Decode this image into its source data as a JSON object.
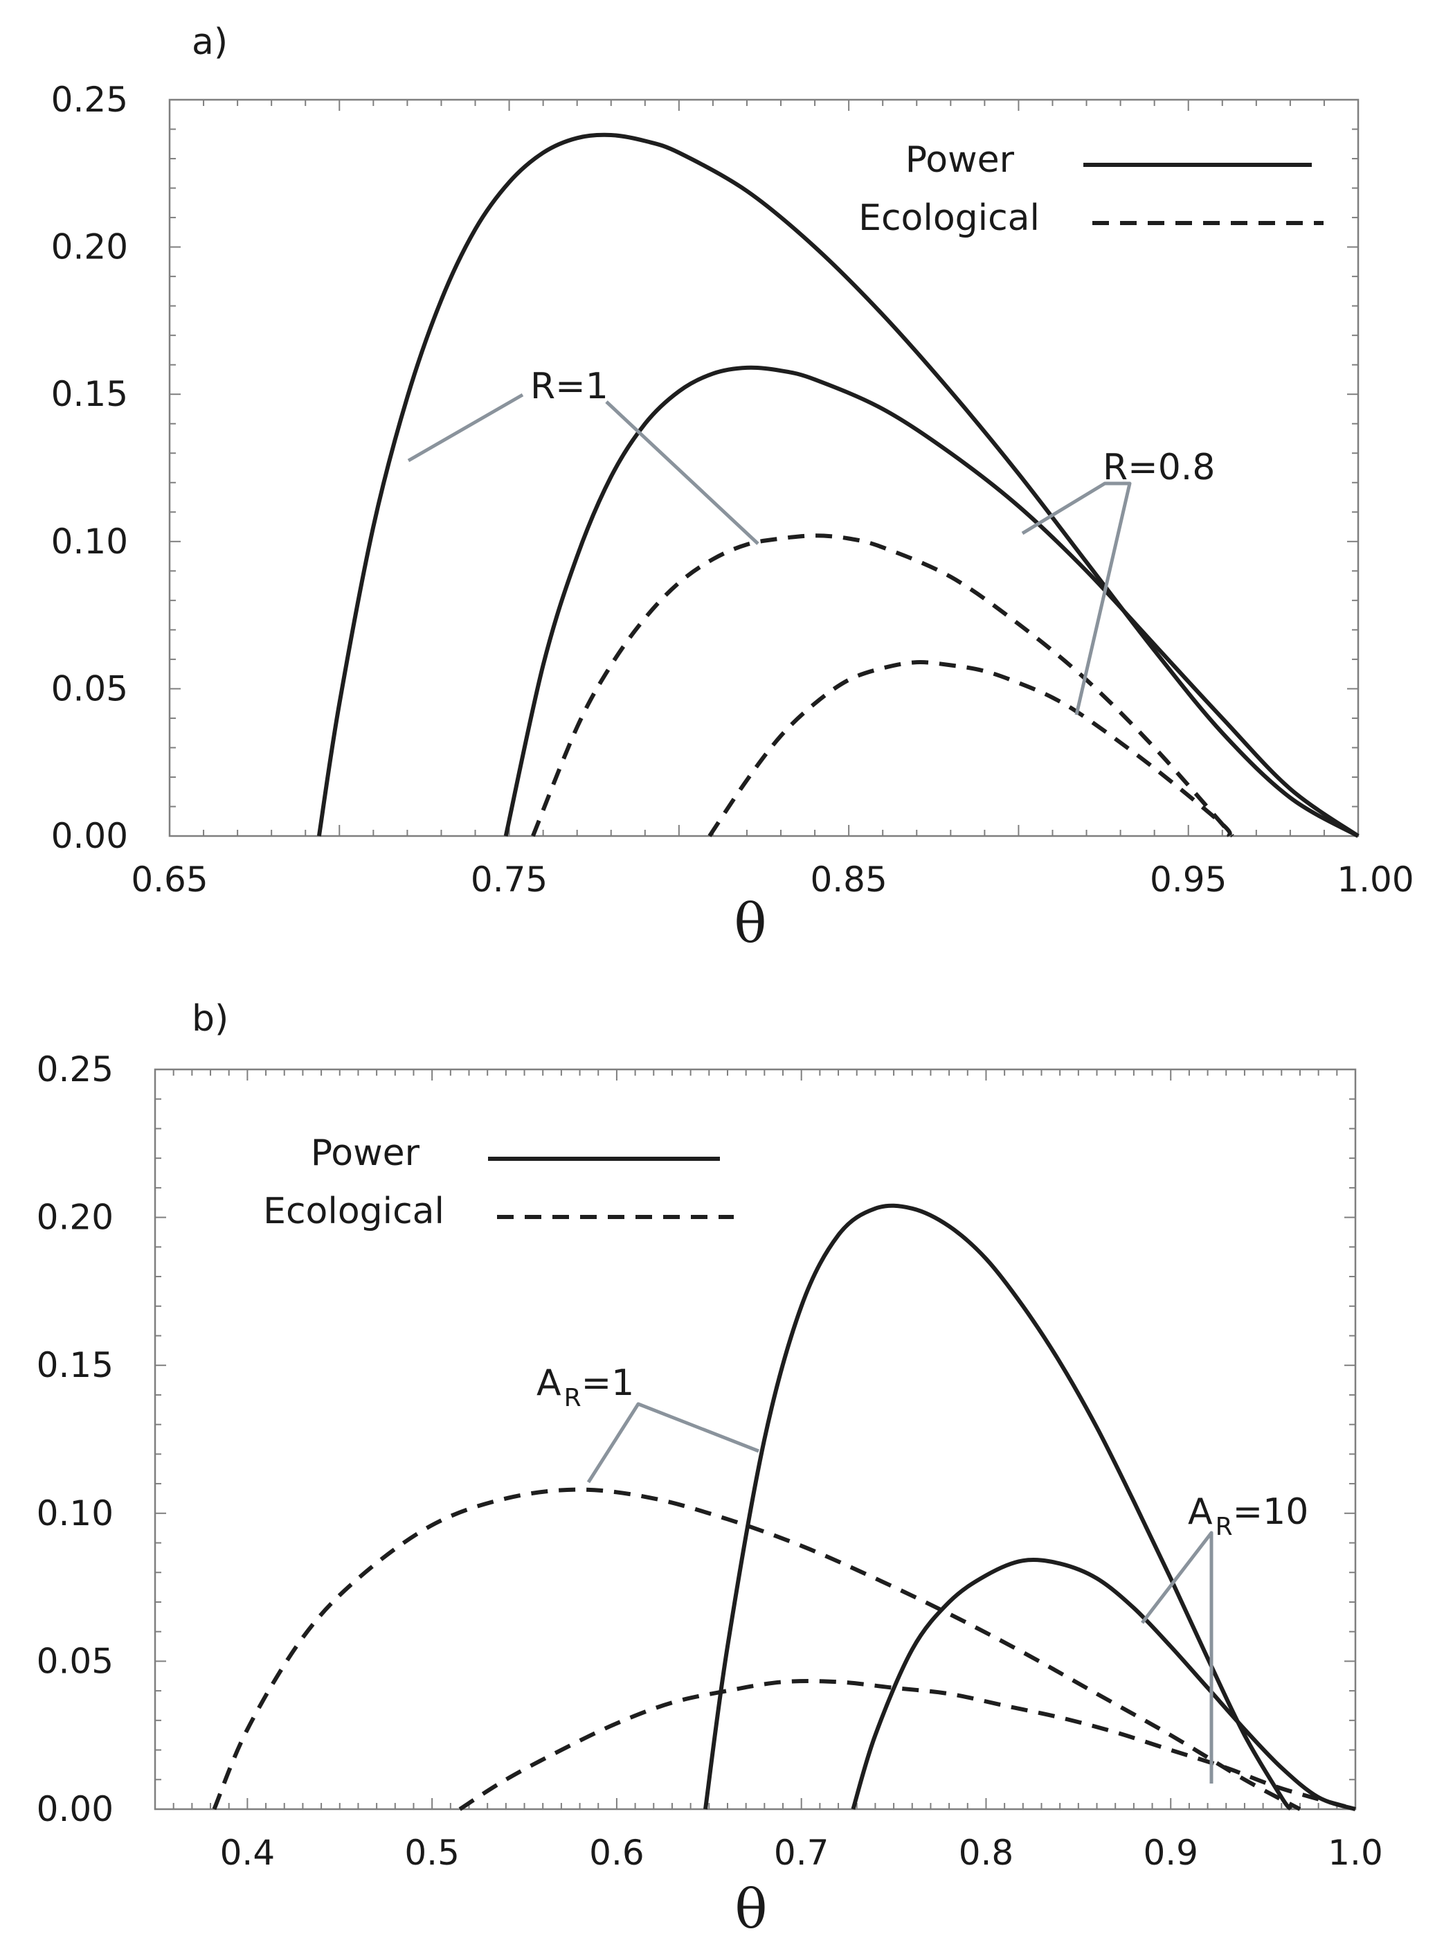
{
  "chart_data": [
    {
      "type": "line",
      "panel_label": "a)",
      "xlabel": "θ",
      "ylabel": "",
      "xlim": [
        0.65,
        1.0
      ],
      "ylim": [
        0.0,
        0.25
      ],
      "xticks": [
        0.65,
        0.75,
        0.85,
        0.95,
        1.0
      ],
      "xtick_labels": [
        "0.65",
        "0.75",
        "0.85",
        "0.95",
        "1.00"
      ],
      "yticks": [
        0.0,
        0.05,
        0.1,
        0.15,
        0.2,
        0.25
      ],
      "ytick_labels": [
        "0.00",
        "0.05",
        "0.10",
        "0.15",
        "0.20",
        "0.25"
      ],
      "legend": {
        "position": "top-right",
        "entries": [
          {
            "label": "Power",
            "style": "solid"
          },
          {
            "label": "Ecological",
            "style": "dashed"
          }
        ]
      },
      "series": [
        {
          "group": "R=1",
          "style": "solid",
          "x": [
            0.694,
            0.7,
            0.71,
            0.72,
            0.73,
            0.74,
            0.75,
            0.76,
            0.77,
            0.78,
            0.79,
            0.8,
            0.82,
            0.84,
            0.86,
            0.88,
            0.9,
            0.92,
            0.94,
            0.96,
            0.98,
            1.0
          ],
          "y": [
            0.0,
            0.045,
            0.105,
            0.149,
            0.182,
            0.206,
            0.222,
            0.232,
            0.237,
            0.238,
            0.236,
            0.232,
            0.219,
            0.2,
            0.177,
            0.151,
            0.123,
            0.093,
            0.063,
            0.035,
            0.013,
            0.0
          ]
        },
        {
          "group": "R=0.8",
          "style": "solid",
          "x": [
            0.749,
            0.76,
            0.77,
            0.78,
            0.79,
            0.8,
            0.81,
            0.82,
            0.83,
            0.84,
            0.86,
            0.88,
            0.9,
            0.92,
            0.94,
            0.96,
            0.98,
            1.0
          ],
          "y": [
            0.0,
            0.058,
            0.095,
            0.122,
            0.14,
            0.151,
            0.157,
            0.159,
            0.158,
            0.155,
            0.145,
            0.13,
            0.112,
            0.09,
            0.065,
            0.04,
            0.016,
            0.0
          ]
        },
        {
          "group": "R=1",
          "style": "dashed",
          "x": [
            0.757,
            0.77,
            0.78,
            0.79,
            0.8,
            0.81,
            0.82,
            0.83,
            0.84,
            0.85,
            0.86,
            0.88,
            0.9,
            0.92,
            0.94,
            0.96,
            0.963
          ],
          "y": [
            0.0,
            0.037,
            0.058,
            0.074,
            0.086,
            0.094,
            0.099,
            0.101,
            0.102,
            0.101,
            0.098,
            0.088,
            0.072,
            0.053,
            0.03,
            0.004,
            0.0
          ]
        },
        {
          "group": "R=0.8",
          "style": "dashed",
          "x": [
            0.809,
            0.82,
            0.83,
            0.84,
            0.85,
            0.86,
            0.87,
            0.88,
            0.89,
            0.9,
            0.91,
            0.92,
            0.94,
            0.96,
            0.962
          ],
          "y": [
            0.0,
            0.019,
            0.034,
            0.045,
            0.053,
            0.057,
            0.059,
            0.058,
            0.056,
            0.052,
            0.047,
            0.04,
            0.023,
            0.004,
            0.0
          ]
        }
      ],
      "annotations": [
        {
          "text": "R=1",
          "targets": [
            "R=1 solid",
            "R=1 dashed"
          ]
        },
        {
          "text": "R=0.8",
          "targets": [
            "R=0.8 solid",
            "R=0.8 dashed"
          ]
        }
      ]
    },
    {
      "type": "line",
      "panel_label": "b)",
      "xlabel": "θ",
      "ylabel": "",
      "xlim": [
        0.35,
        1.0
      ],
      "ylim": [
        0.0,
        0.25
      ],
      "xticks": [
        0.4,
        0.5,
        0.6,
        0.7,
        0.8,
        0.9,
        1.0
      ],
      "xtick_labels": [
        "0.4",
        "0.5",
        "0.6",
        "0.7",
        "0.8",
        "0.9",
        "1.0"
      ],
      "yticks": [
        0.0,
        0.05,
        0.1,
        0.15,
        0.2,
        0.25
      ],
      "ytick_labels": [
        "0.00",
        "0.05",
        "0.10",
        "0.15",
        "0.20",
        "0.25"
      ],
      "legend": {
        "position": "top-left",
        "entries": [
          {
            "label": "Power",
            "style": "solid"
          },
          {
            "label": "Ecological",
            "style": "dashed"
          }
        ]
      },
      "series": [
        {
          "group": "AR=1",
          "style": "solid",
          "x": [
            0.648,
            0.66,
            0.68,
            0.7,
            0.72,
            0.74,
            0.76,
            0.78,
            0.8,
            0.82,
            0.84,
            0.86,
            0.88,
            0.9,
            0.92,
            0.94,
            0.96,
            0.965
          ],
          "y": [
            0.0,
            0.055,
            0.125,
            0.17,
            0.194,
            0.203,
            0.203,
            0.197,
            0.186,
            0.17,
            0.151,
            0.129,
            0.104,
            0.078,
            0.051,
            0.025,
            0.004,
            0.0
          ]
        },
        {
          "group": "AR=10",
          "style": "solid",
          "x": [
            0.728,
            0.74,
            0.76,
            0.78,
            0.8,
            0.82,
            0.84,
            0.86,
            0.88,
            0.9,
            0.92,
            0.94,
            0.96,
            0.98,
            1.0
          ],
          "y": [
            0.0,
            0.025,
            0.054,
            0.07,
            0.079,
            0.084,
            0.083,
            0.078,
            0.068,
            0.055,
            0.041,
            0.027,
            0.014,
            0.004,
            0.0
          ]
        },
        {
          "group": "AR=1",
          "style": "dashed",
          "x": [
            0.382,
            0.4,
            0.43,
            0.46,
            0.5,
            0.54,
            0.58,
            0.62,
            0.66,
            0.7,
            0.74,
            0.78,
            0.82,
            0.86,
            0.9,
            0.94,
            0.97
          ],
          "y": [
            0.0,
            0.027,
            0.058,
            0.078,
            0.096,
            0.105,
            0.108,
            0.105,
            0.098,
            0.089,
            0.078,
            0.066,
            0.053,
            0.039,
            0.025,
            0.01,
            0.0
          ]
        },
        {
          "group": "AR=10",
          "style": "dashed",
          "x": [
            0.515,
            0.54,
            0.57,
            0.6,
            0.63,
            0.66,
            0.69,
            0.72,
            0.75,
            0.78,
            0.81,
            0.84,
            0.87,
            0.9,
            0.93,
            0.96,
            1.0
          ],
          "y": [
            0.0,
            0.01,
            0.02,
            0.029,
            0.036,
            0.04,
            0.043,
            0.043,
            0.041,
            0.039,
            0.035,
            0.031,
            0.026,
            0.02,
            0.014,
            0.007,
            0.0
          ]
        }
      ],
      "annotations": [
        {
          "text": "A",
          "subscript": "R",
          "suffix": "=1",
          "targets": [
            "AR=1 solid",
            "AR=1 dashed"
          ]
        },
        {
          "text": "A",
          "subscript": "R",
          "suffix": "=10",
          "targets": [
            "AR=10 solid",
            "AR=10 dashed"
          ]
        }
      ]
    }
  ]
}
